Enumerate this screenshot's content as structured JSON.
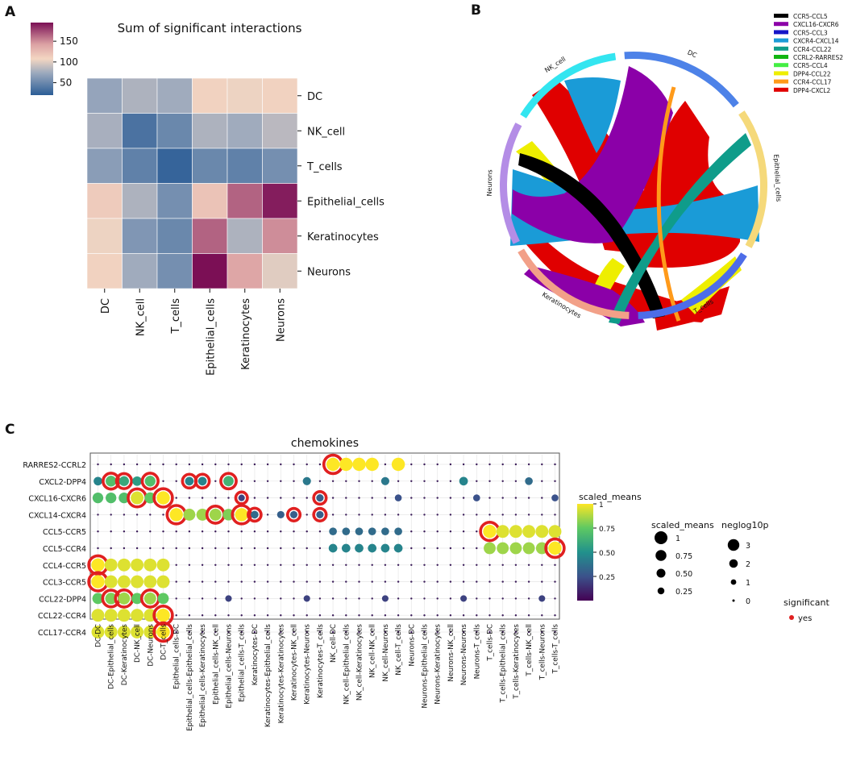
{
  "panels": {
    "a": "A",
    "b": "B",
    "c": "C"
  },
  "chart_data": [
    {
      "type": "heatmap",
      "title": "Sum of significant interactions",
      "rows": [
        "DC",
        "NK_cell",
        "T_cells",
        "Epithelial_cells",
        "Keratinocytes",
        "Neurons"
      ],
      "cols": [
        "DC",
        "NK_cell",
        "T_cells",
        "Epithelial_cells",
        "Keratinocytes",
        "Neurons"
      ],
      "values": [
        [
          70,
          80,
          75,
          110,
          105,
          110
        ],
        [
          78,
          35,
          50,
          80,
          75,
          85
        ],
        [
          65,
          45,
          25,
          50,
          45,
          55
        ],
        [
          115,
          80,
          55,
          120,
          165,
          190
        ],
        [
          105,
          60,
          50,
          165,
          80,
          150
        ],
        [
          110,
          75,
          55,
          195,
          140,
          100
        ]
      ],
      "colorbar": {
        "ticks": [
          "150",
          "100",
          "50"
        ],
        "tick_values": [
          150,
          100,
          50
        ],
        "range": [
          20,
          195
        ]
      }
    },
    {
      "type": "chord",
      "groups": [
        {
          "name": "NK_cell",
          "color": "#33e5f0"
        },
        {
          "name": "DC",
          "color": "#4d82e8"
        },
        {
          "name": "Epithelial_cells",
          "color": "#f5d97a"
        },
        {
          "name": "T_cells",
          "color": "#4d6de8"
        },
        {
          "name": "Keratinocytes",
          "color": "#f2a088"
        },
        {
          "name": "Neurons",
          "color": "#b48de6"
        }
      ],
      "legend": [
        {
          "name": "CCR5-CCL5",
          "color": "#000000"
        },
        {
          "name": "CXCL16-CXCR6",
          "color": "#8b00a8"
        },
        {
          "name": "CCR5-CCL3",
          "color": "#1515c8"
        },
        {
          "name": "CXCR4-CXCL14",
          "color": "#1a9bd7"
        },
        {
          "name": "CCR4-CCL22",
          "color": "#0f9c8a"
        },
        {
          "name": "CCRL2-RARRES2",
          "color": "#12b512"
        },
        {
          "name": "CCR5-CCL4",
          "color": "#44ee44"
        },
        {
          "name": "DPP4-CCL22",
          "color": "#eeee00"
        },
        {
          "name": "CCR4-CCL17",
          "color": "#ff9a1a"
        },
        {
          "name": "DPP4-CXCL2",
          "color": "#e00000"
        }
      ]
    },
    {
      "type": "scatter",
      "title": "chemokines",
      "rows": [
        "RARRES2-CCRL2",
        "CXCL2-DPP4",
        "CXCL16-CXCR6",
        "CXCL14-CXCR4",
        "CCL5-CCR5",
        "CCL5-CCR4",
        "CCL4-CCR5",
        "CCL3-CCR5",
        "CCL22-DPP4",
        "CCL22-CCR4",
        "CCL17-CCR4"
      ],
      "cols": [
        "DC-DC",
        "DC-Epithelial_cells",
        "DC-Keratinocytes",
        "DC-NK_cell",
        "DC-Neurons",
        "DC-T_cells",
        "Epithelial_cells-DC",
        "Epithelial_cells-Epithelial_cells",
        "Epithelial_cells-Keratinocytes",
        "Epithelial_cells-NK_cell",
        "Epithelial_cells-Neurons",
        "Epithelial_cells-T_cells",
        "Keratinocytes-DC",
        "Keratinocytes-Epithelial_cells",
        "Keratinocytes-Keratinocytes",
        "Keratinocytes-NK_cell",
        "Keratinocytes-Neurons",
        "Keratinocytes-T_cells",
        "NK_cell-DC",
        "NK_cell-Epithelial_cells",
        "NK_cell-Keratinocytes",
        "NK_cell-NK_cell",
        "NK_cell-Neurons",
        "NK_cell-T_cells",
        "Neurons-DC",
        "Neurons-Epithelial_cells",
        "Neurons-Keratinocytes",
        "Neurons-NK_cell",
        "Neurons-Neurons",
        "Neurons-T_cells",
        "T_cells-DC",
        "T_cells-Epithelial_cells",
        "T_cells-Keratinocytes",
        "T_cells-NK_cell",
        "T_cells-Neurons",
        "T_cells-T_cells"
      ],
      "points": [
        [
          0,
          18,
          1,
          1
        ],
        [
          0,
          19,
          1,
          0
        ],
        [
          0,
          20,
          1,
          0
        ],
        [
          0,
          21,
          1,
          0
        ],
        [
          0,
          23,
          1,
          0
        ],
        [
          1,
          0,
          0.45,
          0
        ],
        [
          1,
          1,
          0.7,
          1
        ],
        [
          1,
          2,
          0.6,
          1
        ],
        [
          1,
          3,
          0.55,
          0
        ],
        [
          1,
          4,
          0.7,
          1
        ],
        [
          1,
          7,
          0.45,
          1
        ],
        [
          1,
          8,
          0.45,
          1
        ],
        [
          1,
          10,
          0.65,
          1
        ],
        [
          1,
          16,
          0.4,
          0
        ],
        [
          1,
          22,
          0.4,
          0
        ],
        [
          1,
          28,
          0.45,
          0
        ],
        [
          1,
          33,
          0.35,
          0
        ],
        [
          2,
          0,
          0.7,
          0
        ],
        [
          2,
          1,
          0.7,
          0
        ],
        [
          2,
          2,
          0.7,
          0
        ],
        [
          2,
          3,
          0.95,
          1
        ],
        [
          2,
          4,
          0.75,
          0
        ],
        [
          2,
          5,
          1,
          1
        ],
        [
          2,
          11,
          0.2,
          1
        ],
        [
          2,
          17,
          0.3,
          1
        ],
        [
          2,
          23,
          0.25,
          0
        ],
        [
          2,
          29,
          0.25,
          0
        ],
        [
          2,
          35,
          0.25,
          0
        ],
        [
          3,
          6,
          1,
          1
        ],
        [
          3,
          7,
          0.85,
          0
        ],
        [
          3,
          8,
          0.85,
          0
        ],
        [
          3,
          9,
          0.85,
          1
        ],
        [
          3,
          10,
          0.8,
          0
        ],
        [
          3,
          11,
          1,
          1
        ],
        [
          3,
          12,
          0.35,
          1
        ],
        [
          3,
          14,
          0.3,
          0
        ],
        [
          3,
          15,
          0.3,
          1
        ],
        [
          3,
          17,
          0.3,
          1
        ],
        [
          4,
          18,
          0.35,
          0
        ],
        [
          4,
          19,
          0.35,
          0
        ],
        [
          4,
          20,
          0.35,
          0
        ],
        [
          4,
          21,
          0.35,
          0
        ],
        [
          4,
          22,
          0.35,
          0
        ],
        [
          4,
          23,
          0.35,
          0
        ],
        [
          4,
          30,
          1,
          1
        ],
        [
          4,
          31,
          0.95,
          0
        ],
        [
          4,
          32,
          0.95,
          0
        ],
        [
          4,
          33,
          0.95,
          0
        ],
        [
          4,
          34,
          0.95,
          0
        ],
        [
          4,
          35,
          0.95,
          0
        ],
        [
          5,
          18,
          0.45,
          0
        ],
        [
          5,
          19,
          0.45,
          0
        ],
        [
          5,
          20,
          0.45,
          0
        ],
        [
          5,
          21,
          0.45,
          0
        ],
        [
          5,
          22,
          0.45,
          0
        ],
        [
          5,
          23,
          0.45,
          0
        ],
        [
          5,
          30,
          0.85,
          0
        ],
        [
          5,
          31,
          0.85,
          0
        ],
        [
          5,
          32,
          0.85,
          0
        ],
        [
          5,
          33,
          0.85,
          0
        ],
        [
          5,
          34,
          0.85,
          0
        ],
        [
          5,
          35,
          1,
          1
        ],
        [
          6,
          0,
          1,
          1
        ],
        [
          6,
          1,
          0.95,
          0
        ],
        [
          6,
          2,
          0.95,
          0
        ],
        [
          6,
          3,
          0.95,
          0
        ],
        [
          6,
          4,
          0.95,
          0
        ],
        [
          6,
          5,
          0.95,
          0
        ],
        [
          7,
          0,
          1,
          1
        ],
        [
          7,
          1,
          0.95,
          0
        ],
        [
          7,
          2,
          0.95,
          0
        ],
        [
          7,
          3,
          0.95,
          0
        ],
        [
          7,
          4,
          0.95,
          0
        ],
        [
          7,
          5,
          0.95,
          0
        ],
        [
          8,
          0,
          0.75,
          0
        ],
        [
          8,
          1,
          0.8,
          1
        ],
        [
          8,
          2,
          0.85,
          1
        ],
        [
          8,
          3,
          0.75,
          0
        ],
        [
          8,
          4,
          0.85,
          1
        ],
        [
          8,
          5,
          0.75,
          0
        ],
        [
          8,
          10,
          0.2,
          0
        ],
        [
          8,
          16,
          0.2,
          0
        ],
        [
          8,
          22,
          0.2,
          0
        ],
        [
          8,
          28,
          0.2,
          0
        ],
        [
          8,
          34,
          0.2,
          0
        ],
        [
          9,
          0,
          0.95,
          0
        ],
        [
          9,
          1,
          0.95,
          0
        ],
        [
          9,
          2,
          0.95,
          0
        ],
        [
          9,
          3,
          0.95,
          0
        ],
        [
          9,
          4,
          0.95,
          0
        ],
        [
          9,
          5,
          1,
          1
        ],
        [
          10,
          0,
          0.95,
          0
        ],
        [
          10,
          1,
          0.95,
          0
        ],
        [
          10,
          2,
          0.95,
          0
        ],
        [
          10,
          3,
          0.95,
          0
        ],
        [
          10,
          4,
          0.95,
          0
        ],
        [
          10,
          5,
          1,
          1
        ]
      ],
      "colorbar": {
        "title": "scaled_means",
        "ticks": [
          "1",
          "0.75",
          "0.50",
          "0.25"
        ],
        "tick_values": [
          1,
          0.75,
          0.5,
          0.25
        ]
      },
      "size_legend": {
        "title": "scaled_means",
        "labels": [
          "1",
          "0.75",
          "0.50",
          "0.25"
        ],
        "values": [
          1,
          0.75,
          0.5,
          0.25
        ]
      },
      "neglog_legend": {
        "title": "neglog10p",
        "labels": [
          "3",
          "2",
          "1",
          "0"
        ],
        "values": [
          3,
          2,
          1,
          0
        ]
      },
      "sig_legend": {
        "title": "significant",
        "label": "yes",
        "color": "#e02020"
      }
    }
  ]
}
